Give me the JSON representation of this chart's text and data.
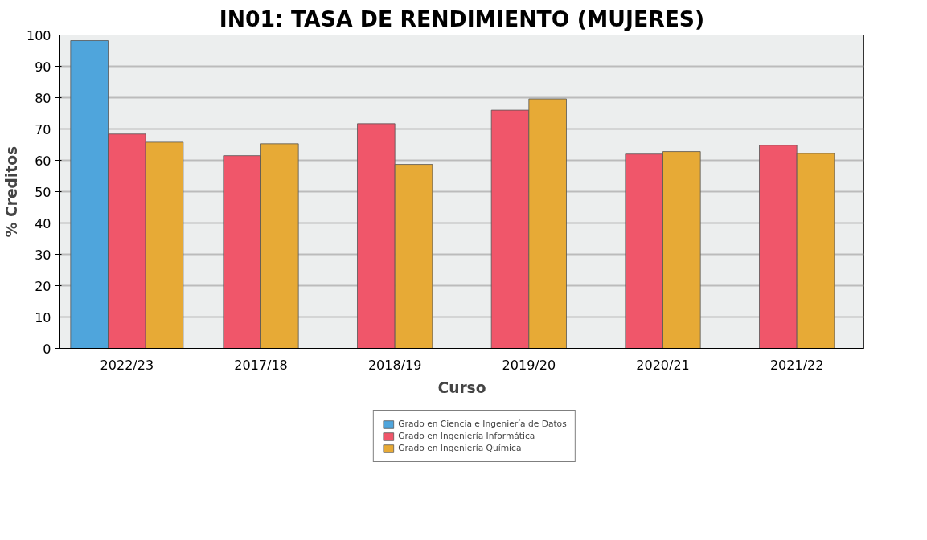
{
  "chart_data": {
    "type": "bar",
    "title": "IN01: TASA DE RENDIMIENTO (MUJERES)",
    "xlabel": "Curso",
    "ylabel": "% Creditos",
    "categories": [
      "2022/23",
      "2017/18",
      "2018/19",
      "2019/20",
      "2020/21",
      "2021/22"
    ],
    "series": [
      {
        "name": "Grado en Ciencia e Ingeniería de Datos",
        "color": "#4fa5dc",
        "values": [
          98.2,
          null,
          null,
          null,
          null,
          null
        ]
      },
      {
        "name": "Grado en Ingeniería Informática",
        "color": "#f0566a",
        "values": [
          68.4,
          61.5,
          71.7,
          76.0,
          62.0,
          64.8
        ]
      },
      {
        "name": "Grado en Ingeniería Química",
        "color": "#e7aa36",
        "values": [
          65.8,
          65.3,
          58.7,
          79.6,
          62.8,
          62.2
        ]
      }
    ],
    "ylim": [
      0,
      100
    ],
    "yticks": [
      0,
      10,
      20,
      30,
      40,
      50,
      60,
      70,
      80,
      90,
      100
    ],
    "grid": "y",
    "legend": "bottom"
  }
}
